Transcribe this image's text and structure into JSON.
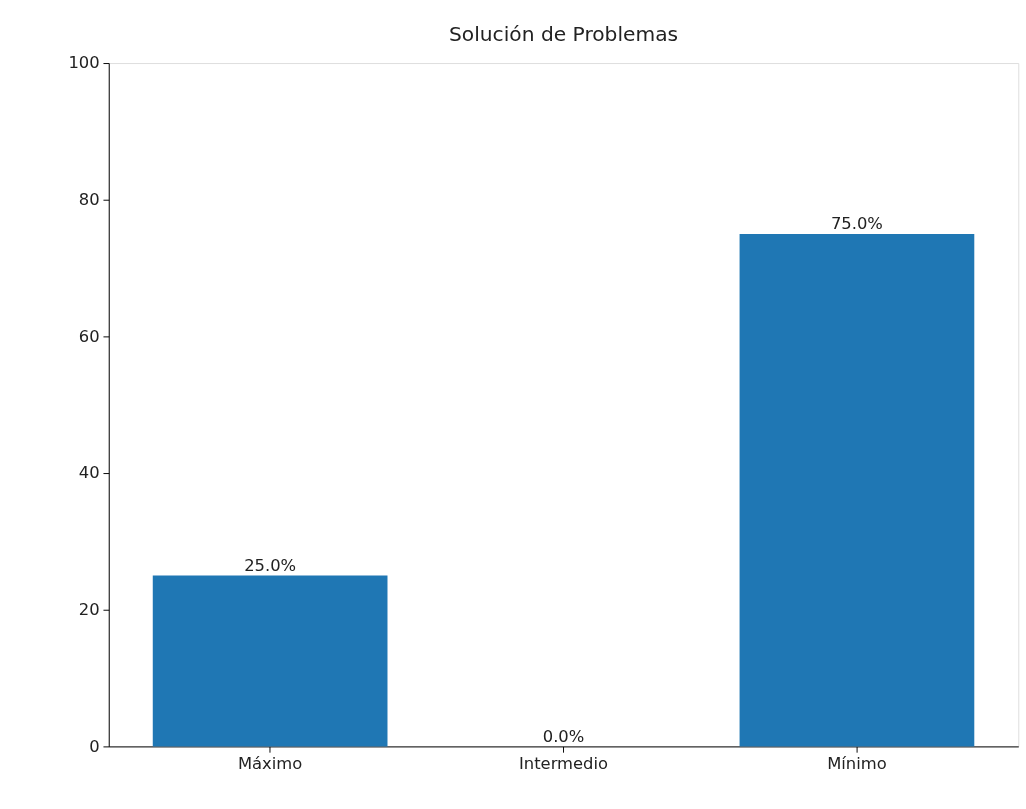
{
  "chart_data": {
    "type": "bar",
    "title": "Solución de Problemas",
    "categories": [
      "Máximo",
      "Intermedio",
      "Mínimo"
    ],
    "values": [
      25,
      0,
      75
    ],
    "value_labels": [
      "25.0%",
      "0.0%",
      "75.0%"
    ],
    "color": "#1f77b4",
    "ylim": [
      0,
      100
    ],
    "yticks": [
      0,
      20,
      40,
      60,
      80,
      100
    ],
    "grid": false
  }
}
